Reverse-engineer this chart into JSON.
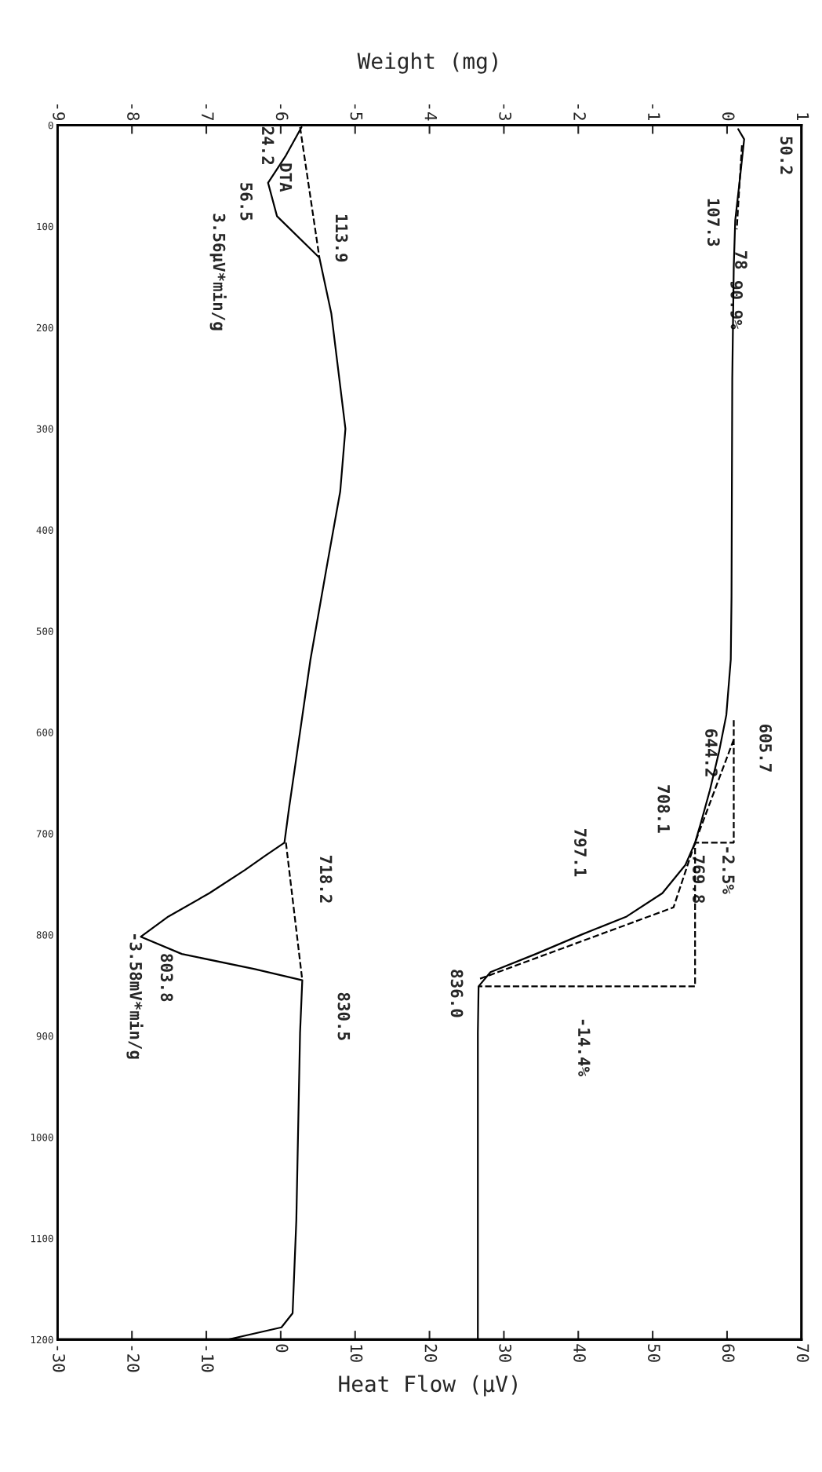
{
  "chart_data": {
    "type": "line",
    "xlabel": "Heat Flow (µV)",
    "x2label": "Weight (mg)",
    "xlim": [
      -30,
      70
    ],
    "xticks": [
      -30,
      -20,
      -10,
      0,
      10,
      20,
      30,
      40,
      50,
      60,
      70
    ],
    "x2lim": [
      -9,
      1
    ],
    "x2ticks": [
      -9,
      -8,
      -7,
      -6,
      -5,
      -4,
      -3,
      -2,
      -1,
      0,
      1
    ],
    "ylim": [
      1200,
      0
    ],
    "yticks": [
      0,
      100,
      200,
      300,
      400,
      500,
      600,
      700,
      800,
      900,
      1000,
      1100,
      1200
    ],
    "grid": false,
    "legend": false,
    "series": [
      {
        "color": "#000000",
        "line_style": "solid",
        "x": [
          2.8,
          0.7,
          -1.7,
          -0.5,
          5.2,
          6.8,
          8.7,
          8.0,
          6.2,
          4.0,
          2.2,
          1.1,
          0.5,
          -2.1,
          -4.8,
          -9.6,
          -15.1,
          -18.8,
          -13.3,
          -3.5,
          2.9,
          2.6,
          2.1,
          1.6,
          0.1,
          -7.1
        ],
        "values": [
          2,
          30,
          57,
          90,
          131,
          186,
          300,
          362,
          436,
          528,
          620,
          676,
          709,
          722,
          736,
          759,
          782,
          802,
          819,
          834,
          845,
          897,
          1082,
          1174,
          1188,
          1200
        ]
      },
      {
        "color": "#000000",
        "line_style": "dashed",
        "x": [
          2.6,
          5.2
        ],
        "values": [
          2,
          131
        ]
      },
      {
        "color": "#000000",
        "line_style": "dashed",
        "x": [
          0.7,
          2.9
        ],
        "values": [
          709,
          845
        ]
      },
      {
        "axis": "x2",
        "color": "#000000",
        "line_style": "solid",
        "x": [
          0.15,
          0.23,
          0.18,
          0.11,
          0.09,
          0.07,
          0.06,
          0.05,
          -0.01,
          -0.11,
          -0.23,
          -0.35,
          -0.43,
          -0.56,
          -0.87,
          -1.35,
          -1.96,
          -2.57,
          -3.18,
          -3.34,
          -3.35,
          -3.35
        ],
        "values": [
          4,
          14,
          48,
          94,
          140,
          251,
          466,
          528,
          583,
          620,
          657,
          689,
          709,
          731,
          759,
          782,
          800,
          819,
          837,
          851,
          897,
          1200
        ]
      },
      {
        "axis": "x2",
        "color": "#000000",
        "line_style": "dashed",
        "x": [
          0.2,
          0.13
        ],
        "values": [
          20,
          103
        ]
      },
      {
        "axis": "x2",
        "color": "#000000",
        "line_style": "dashed",
        "x": [
          0.09,
          -0.43,
          null,
          0.09,
          0.09,
          -0.43,
          -0.43,
          -3.34,
          null,
          -0.43,
          -0.72,
          -3.34
        ],
        "values": [
          607,
          709,
          null,
          588,
          709,
          709,
          851,
          851,
          null,
          709,
          773,
          844
        ]
      }
    ],
    "annotations": [
      "50.2",
      "107.3",
      "78",
      "90.9%",
      "24.2",
      "DTA",
      "56.5",
      "113.9",
      "3.56µV*min/g",
      "605.7",
      "644.2",
      "708.1",
      "-2.5%",
      "769.8",
      "797.1",
      "836.0",
      "-14.4%",
      "718.2",
      "830.5",
      "803.8",
      "-3.58mV*min/g"
    ]
  }
}
